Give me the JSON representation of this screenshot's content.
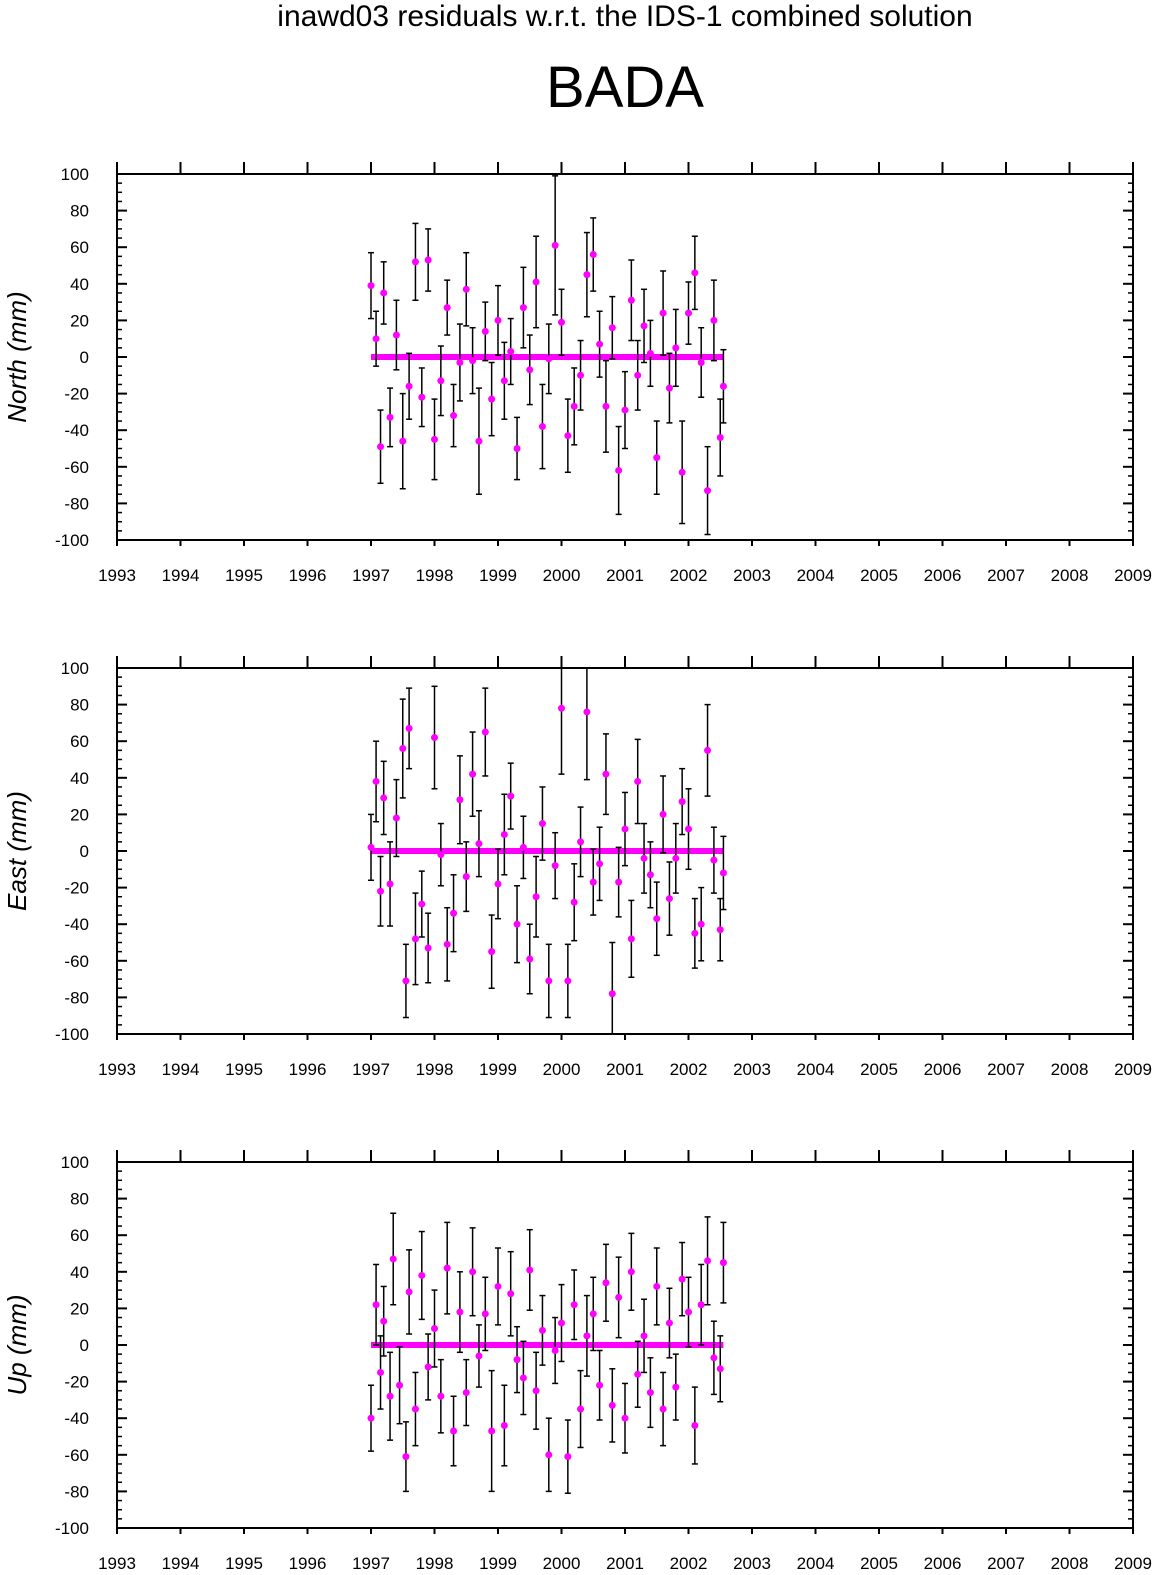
{
  "figure": {
    "supertitle": "inawd03 residuals w.r.t. the IDS-1 combined solution",
    "station": "BADA"
  },
  "colors": {
    "marker": "#ff00ff",
    "errorbar": "#000000",
    "axis": "#000000"
  },
  "chart_data": [
    {
      "type": "scatter",
      "ylabel": "North (mm)",
      "xlim": [
        1993,
        2009
      ],
      "ylim": [
        -100,
        100
      ],
      "xticks": [
        "1993",
        "1994",
        "1995",
        "1996",
        "1997",
        "1998",
        "1999",
        "2000",
        "2001",
        "2002",
        "2003",
        "2004",
        "2005",
        "2006",
        "2007",
        "2008",
        "2009"
      ],
      "yticks": [
        "100",
        "80",
        "60",
        "40",
        "20",
        "0",
        "-20",
        "-40",
        "-60",
        "-80",
        "-100"
      ],
      "grid": false,
      "series": [
        {
          "x": [
            1997.0,
            1997.08,
            1997.15,
            1997.2,
            1997.3,
            1997.4,
            1997.5,
            1997.6,
            1997.7,
            1997.8,
            1997.9,
            1998.0,
            1998.1,
            1998.2,
            1998.3,
            1998.4,
            1998.5,
            1998.6,
            1998.7,
            1998.8,
            1998.9,
            1999.0,
            1999.1,
            1999.2,
            1999.3,
            1999.4,
            1999.5,
            1999.6,
            1999.7,
            1999.8,
            1999.9,
            2000.0,
            2000.1,
            2000.2,
            2000.3,
            2000.4,
            2000.5,
            2000.6,
            2000.7,
            2000.8,
            2000.9,
            2001.0,
            2001.1,
            2001.2,
            2001.3,
            2001.4,
            2001.5,
            2001.6,
            2001.7,
            2001.8,
            2001.9,
            2002.0,
            2002.1,
            2002.2,
            2002.3,
            2002.4,
            2002.5,
            2002.55
          ],
          "y": [
            39,
            10,
            -49,
            35,
            -33,
            12,
            -46,
            -16,
            52,
            -22,
            53,
            -45,
            -13,
            27,
            -32,
            -3,
            37,
            -2,
            -46,
            14,
            -23,
            20,
            -13,
            3,
            -50,
            27,
            -7,
            41,
            -38,
            -1,
            61,
            19,
            -43,
            -27,
            -10,
            45,
            56,
            7,
            -27,
            16,
            -62,
            -29,
            31,
            -10,
            17,
            2,
            -55,
            24,
            -17,
            5,
            -63,
            24,
            46,
            -3,
            -73,
            20,
            -44,
            -16
          ],
          "err": [
            18,
            15,
            20,
            17,
            16,
            19,
            26,
            18,
            21,
            16,
            17,
            22,
            19,
            15,
            17,
            21,
            20,
            18,
            29,
            16,
            20,
            19,
            21,
            18,
            17,
            22,
            19,
            25,
            23,
            19,
            38,
            18,
            20,
            21,
            19,
            23,
            20,
            18,
            25,
            17,
            24,
            21,
            22,
            19,
            20,
            18,
            20,
            23,
            19,
            21,
            28,
            17,
            20,
            19,
            24,
            22,
            21,
            20
          ]
        }
      ]
    },
    {
      "type": "scatter",
      "ylabel": "East (mm)",
      "xlim": [
        1993,
        2009
      ],
      "ylim": [
        -100,
        100
      ],
      "xticks": [
        "1993",
        "1994",
        "1995",
        "1996",
        "1997",
        "1998",
        "1999",
        "2000",
        "2001",
        "2002",
        "2003",
        "2004",
        "2005",
        "2006",
        "2007",
        "2008",
        "2009"
      ],
      "yticks": [
        "100",
        "80",
        "60",
        "40",
        "20",
        "0",
        "-20",
        "-40",
        "-60",
        "-80",
        "-100"
      ],
      "grid": false,
      "series": [
        {
          "x": [
            1997.0,
            1997.08,
            1997.15,
            1997.2,
            1997.3,
            1997.4,
            1997.5,
            1997.55,
            1997.6,
            1997.7,
            1997.8,
            1997.9,
            1998.0,
            1998.1,
            1998.2,
            1998.3,
            1998.4,
            1998.5,
            1998.6,
            1998.7,
            1998.8,
            1998.9,
            1999.0,
            1999.1,
            1999.2,
            1999.3,
            1999.4,
            1999.5,
            1999.6,
            1999.7,
            1999.8,
            1999.9,
            2000.0,
            2000.1,
            2000.2,
            2000.3,
            2000.4,
            2000.5,
            2000.6,
            2000.7,
            2000.8,
            2000.9,
            2001.0,
            2001.1,
            2001.2,
            2001.3,
            2001.4,
            2001.5,
            2001.6,
            2001.7,
            2001.8,
            2001.9,
            2002.0,
            2002.1,
            2002.2,
            2002.3,
            2002.4,
            2002.5,
            2002.55
          ],
          "y": [
            2,
            38,
            -22,
            29,
            -18,
            18,
            56,
            -71,
            67,
            -48,
            -29,
            -53,
            62,
            -2,
            -51,
            -34,
            28,
            -14,
            42,
            4,
            65,
            -55,
            -18,
            9,
            30,
            -40,
            2,
            -59,
            -25,
            15,
            -71,
            -8,
            78,
            -71,
            -28,
            5,
            76,
            -17,
            -7,
            42,
            -78,
            -17,
            12,
            -48,
            38,
            -4,
            -13,
            -37,
            20,
            -26,
            -4,
            27,
            12,
            -45,
            -40,
            55,
            -5,
            -43,
            -12
          ],
          "err": [
            18,
            22,
            19,
            20,
            23,
            21,
            27,
            20,
            22,
            25,
            18,
            19,
            28,
            17,
            20,
            21,
            24,
            19,
            23,
            18,
            24,
            20,
            19,
            22,
            18,
            21,
            17,
            19,
            22,
            20,
            20,
            18,
            36,
            20,
            21,
            19,
            37,
            18,
            20,
            22,
            28,
            19,
            20,
            21,
            23,
            19,
            18,
            20,
            21,
            20,
            19,
            18,
            22,
            19,
            20,
            25,
            18,
            17,
            20
          ]
        }
      ]
    },
    {
      "type": "scatter",
      "ylabel": "Up (mm)",
      "xlim": [
        1993,
        2009
      ],
      "ylim": [
        -100,
        100
      ],
      "xticks": [
        "1993",
        "1994",
        "1995",
        "1996",
        "1997",
        "1998",
        "1999",
        "2000",
        "2001",
        "2002",
        "2003",
        "2004",
        "2005",
        "2006",
        "2007",
        "2008",
        "2009"
      ],
      "yticks": [
        "100",
        "80",
        "60",
        "40",
        "20",
        "0",
        "-20",
        "-40",
        "-60",
        "-80",
        "-100"
      ],
      "grid": false,
      "series": [
        {
          "x": [
            1997.0,
            1997.08,
            1997.15,
            1997.2,
            1997.3,
            1997.35,
            1997.45,
            1997.55,
            1997.6,
            1997.7,
            1997.8,
            1997.9,
            1998.0,
            1998.1,
            1998.2,
            1998.3,
            1998.4,
            1998.5,
            1998.6,
            1998.7,
            1998.8,
            1998.9,
            1999.0,
            1999.1,
            1999.2,
            1999.3,
            1999.4,
            1999.5,
            1999.6,
            1999.7,
            1999.8,
            1999.9,
            2000.0,
            2000.1,
            2000.2,
            2000.3,
            2000.4,
            2000.5,
            2000.6,
            2000.7,
            2000.8,
            2000.9,
            2001.0,
            2001.1,
            2001.2,
            2001.3,
            2001.4,
            2001.5,
            2001.6,
            2001.7,
            2001.8,
            2001.9,
            2002.0,
            2002.1,
            2002.2,
            2002.3,
            2002.4,
            2002.5,
            2002.55
          ],
          "y": [
            -40,
            22,
            -15,
            13,
            -28,
            47,
            -22,
            -61,
            29,
            -35,
            38,
            -12,
            9,
            -28,
            42,
            -47,
            18,
            -26,
            40,
            -6,
            17,
            -47,
            32,
            -44,
            28,
            -8,
            -18,
            41,
            -25,
            8,
            -60,
            -3,
            12,
            -61,
            22,
            -35,
            5,
            17,
            -22,
            34,
            -33,
            26,
            -40,
            40,
            -16,
            5,
            -26,
            32,
            -35,
            12,
            -23,
            36,
            18,
            -44,
            22,
            46,
            -7,
            -13,
            45
          ],
          "err": [
            18,
            22,
            20,
            19,
            24,
            25,
            21,
            19,
            23,
            20,
            24,
            18,
            21,
            20,
            25,
            19,
            22,
            18,
            24,
            17,
            20,
            33,
            21,
            22,
            23,
            18,
            20,
            22,
            21,
            19,
            20,
            18,
            21,
            20,
            19,
            21,
            22,
            20,
            19,
            21,
            20,
            22,
            19,
            21,
            18,
            20,
            19,
            21,
            20,
            19,
            18,
            20,
            19,
            21,
            22,
            24,
            20,
            18,
            22
          ]
        }
      ]
    }
  ]
}
